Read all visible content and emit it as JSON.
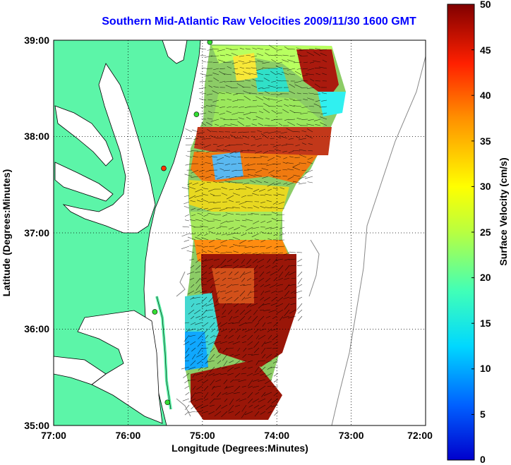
{
  "title": "Southern Mid-Atlantic Raw Velocities 2009/11/30 1600 GMT",
  "xlabel": "Longitude (Degrees:Minutes)",
  "ylabel": "Latitude (Degrees:Minutes)",
  "colorbar_label": "Surface Velocity (cm/s)",
  "x_ticks": [
    "77:00",
    "76:00",
    "75:00",
    "74:00",
    "73:00",
    "72:00"
  ],
  "y_ticks": [
    "39:00",
    "38:00",
    "37:00",
    "36:00",
    "35:00"
  ],
  "colorbar_ticks": [
    "50",
    "45",
    "40",
    "35",
    "30",
    "25",
    "20",
    "15",
    "10",
    "5",
    "0"
  ],
  "colors": {
    "land": "#5cf5a8",
    "title": "#0000ff",
    "station": "#33dd33",
    "station_alt": "#ff3300"
  },
  "chart_data": {
    "type": "heatmap",
    "title": "Southern Mid-Atlantic Raw Velocities 2009/11/30 1600 GMT",
    "xlabel": "Longitude (Degrees:Minutes)",
    "ylabel": "Latitude (Degrees:Minutes)",
    "xlim": [
      -77,
      -72
    ],
    "ylim": [
      35,
      39
    ],
    "colorbar": {
      "label": "Surface Velocity (cm/s)",
      "range": [
        0,
        50
      ],
      "colormap": "jet"
    },
    "grid": "dotted",
    "stations": [
      {
        "lon": -74.9,
        "lat": 38.98,
        "color": "#33dd33"
      },
      {
        "lon": -75.08,
        "lat": 38.23,
        "color": "#33dd33"
      },
      {
        "lon": -75.52,
        "lat": 37.67,
        "color": "#ff3300"
      },
      {
        "lon": -75.64,
        "lat": 36.18,
        "color": "#33dd33"
      },
      {
        "lon": -75.47,
        "lat": 35.24,
        "color": "#33dd33"
      }
    ]
  }
}
